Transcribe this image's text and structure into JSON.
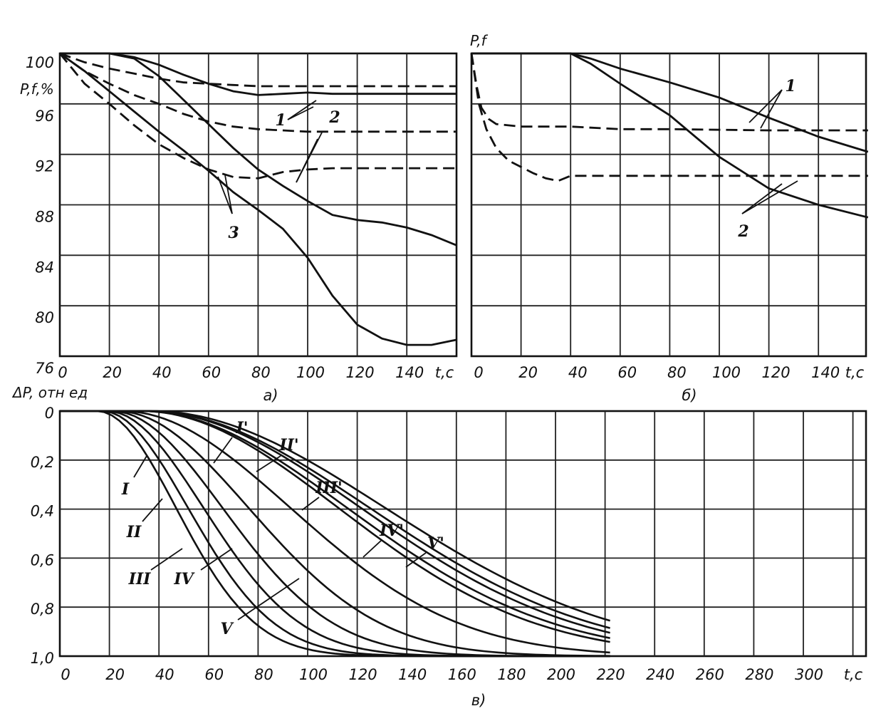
{
  "chart_data": [
    {
      "id": "a",
      "type": "line",
      "caption": "a)",
      "ylabel": "P,f,%",
      "xlabel": "t,c",
      "xlim": [
        0,
        160
      ],
      "ylim": [
        76,
        100
      ],
      "x_ticks": [
        "0",
        "20",
        "40",
        "60",
        "80",
        "100",
        "120",
        "140"
      ],
      "y_ticks": [
        "100",
        "96",
        "92",
        "88",
        "84",
        "80",
        "76"
      ],
      "grid": true,
      "series": [
        {
          "style": "dashed",
          "points": [
            [
              0,
              100
            ],
            [
              10,
              99.3
            ],
            [
              20,
              98.8
            ],
            [
              30,
              98.4
            ],
            [
              40,
              98.0
            ],
            [
              50,
              97.7
            ],
            [
              60,
              97.6
            ],
            [
              70,
              97.5
            ],
            [
              80,
              97.4
            ],
            [
              100,
              97.4
            ],
            [
              130,
              97.4
            ],
            [
              160,
              97.4
            ]
          ]
        },
        {
          "style": "solid",
          "points": [
            [
              0,
              100
            ],
            [
              20,
              100
            ],
            [
              30,
              99.7
            ],
            [
              40,
              99.1
            ],
            [
              50,
              98.3
            ],
            [
              60,
              97.6
            ],
            [
              70,
              97.0
            ],
            [
              80,
              96.7
            ],
            [
              90,
              96.8
            ],
            [
              100,
              96.9
            ],
            [
              110,
              96.8
            ],
            [
              130,
              96.8
            ],
            [
              160,
              96.8
            ]
          ]
        },
        {
          "style": "dashed",
          "points": [
            [
              0,
              100
            ],
            [
              10,
              98.6
            ],
            [
              20,
              97.6
            ],
            [
              30,
              96.7
            ],
            [
              40,
              96.0
            ],
            [
              50,
              95.2
            ],
            [
              60,
              94.6
            ],
            [
              70,
              94.2
            ],
            [
              80,
              94.0
            ],
            [
              100,
              93.8
            ],
            [
              130,
              93.8
            ],
            [
              160,
              93.8
            ]
          ]
        },
        {
          "style": "solid",
          "points": [
            [
              0,
              100
            ],
            [
              20,
              100
            ],
            [
              30,
              99.6
            ],
            [
              40,
              98.2
            ],
            [
              50,
              96.3
            ],
            [
              60,
              94.4
            ],
            [
              70,
              92.5
            ],
            [
              80,
              90.8
            ],
            [
              90,
              89.5
            ],
            [
              100,
              88.3
            ],
            [
              110,
              87.2
            ],
            [
              120,
              86.8
            ],
            [
              130,
              86.6
            ],
            [
              140,
              86.2
            ],
            [
              150,
              85.6
            ],
            [
              160,
              84.8
            ]
          ]
        },
        {
          "style": "dashed",
          "points": [
            [
              0,
              100
            ],
            [
              5,
              98.8
            ],
            [
              10,
              97.6
            ],
            [
              20,
              96.0
            ],
            [
              30,
              94.3
            ],
            [
              40,
              92.8
            ],
            [
              50,
              91.7
            ],
            [
              60,
              90.8
            ],
            [
              70,
              90.2
            ],
            [
              80,
              90.1
            ],
            [
              90,
              90.6
            ],
            [
              100,
              90.8
            ],
            [
              110,
              90.9
            ],
            [
              130,
              90.9
            ],
            [
              160,
              90.9
            ]
          ]
        },
        {
          "style": "solid",
          "points": [
            [
              0,
              100
            ],
            [
              10,
              98.6
            ],
            [
              20,
              97.0
            ],
            [
              30,
              95.4
            ],
            [
              40,
              93.8
            ],
            [
              50,
              92.3
            ],
            [
              60,
              90.7
            ],
            [
              70,
              89.0
            ],
            [
              80,
              87.6
            ],
            [
              90,
              86.1
            ],
            [
              100,
              83.8
            ],
            [
              110,
              80.8
            ],
            [
              120,
              78.5
            ],
            [
              130,
              77.4
            ],
            [
              140,
              76.9
            ],
            [
              150,
              76.9
            ],
            [
              160,
              77.3
            ]
          ]
        }
      ],
      "annotations": [
        "1",
        "2",
        "3"
      ]
    },
    {
      "id": "b",
      "type": "line",
      "caption": "б)",
      "ylabel": "P,f",
      "xlabel": "t,c",
      "xlim": [
        0,
        160
      ],
      "ylim": [
        76,
        100
      ],
      "x_ticks": [
        "0",
        "20",
        "40",
        "60",
        "80",
        "100",
        "120",
        "140"
      ],
      "grid": true,
      "series": [
        {
          "style": "dashed",
          "points": [
            [
              0,
              100
            ],
            [
              2,
              97.5
            ],
            [
              4,
              95.7
            ],
            [
              7,
              94.8
            ],
            [
              10,
              94.4
            ],
            [
              20,
              94.2
            ],
            [
              40,
              94.2
            ],
            [
              60,
              94.0
            ],
            [
              80,
              94.0
            ],
            [
              120,
              93.9
            ],
            [
              160,
              93.9
            ]
          ]
        },
        {
          "style": "dashed",
          "points": [
            [
              0,
              100
            ],
            [
              3,
              96
            ],
            [
              6,
              94
            ],
            [
              10,
              92.5
            ],
            [
              15,
              91.5
            ],
            [
              20,
              91.0
            ],
            [
              25,
              90.5
            ],
            [
              30,
              90.1
            ],
            [
              35,
              89.9
            ],
            [
              40,
              90.3
            ],
            [
              60,
              90.3
            ],
            [
              100,
              90.3
            ],
            [
              160,
              90.3
            ]
          ]
        },
        {
          "style": "solid",
          "points": [
            [
              0,
              100
            ],
            [
              20,
              100
            ],
            [
              40,
              100
            ],
            [
              48,
              99.6
            ],
            [
              60,
              98.8
            ],
            [
              80,
              97.7
            ],
            [
              100,
              96.5
            ],
            [
              120,
              94.9
            ],
            [
              140,
              93.4
            ],
            [
              160,
              92.2
            ]
          ]
        },
        {
          "style": "solid",
          "points": [
            [
              0,
              100
            ],
            [
              20,
              100
            ],
            [
              40,
              100
            ],
            [
              48,
              99.2
            ],
            [
              60,
              97.6
            ],
            [
              80,
              95.1
            ],
            [
              100,
              91.8
            ],
            [
              120,
              89.3
            ],
            [
              140,
              88.0
            ],
            [
              160,
              87.0
            ]
          ]
        }
      ],
      "annotations": [
        "1",
        "2"
      ]
    },
    {
      "id": "c",
      "type": "line",
      "caption": "в)",
      "ylabel": "ΔP, отн ед",
      "xlabel": "t,c",
      "xlim": [
        0,
        320
      ],
      "ylim": [
        1.0,
        0
      ],
      "x_ticks": [
        "0",
        "20",
        "40",
        "60",
        "80",
        "100",
        "120",
        "140",
        "160",
        "180",
        "200",
        "220",
        "240",
        "260",
        "280",
        "300"
      ],
      "y_ticks": [
        "0",
        "0,2",
        "0,4",
        "0,6",
        "0,8",
        "1,0"
      ],
      "grid": true,
      "series": [
        {
          "name": "I",
          "delay": 15,
          "scale": 45
        },
        {
          "name": "II",
          "delay": 17,
          "scale": 49
        },
        {
          "name": "III",
          "delay": 19,
          "scale": 55
        },
        {
          "name": "IV",
          "delay": 21,
          "scale": 63
        },
        {
          "name": "V",
          "delay": 23,
          "scale": 75
        },
        {
          "name": "",
          "delay": 25,
          "scale": 96
        },
        {
          "name": "I'",
          "delay": 33,
          "scale": 112
        },
        {
          "name": "II'",
          "delay": 33,
          "scale": 117
        },
        {
          "name": "III'",
          "delay": 35,
          "scale": 122
        },
        {
          "name": "IV'",
          "delay": 35,
          "scale": 127
        },
        {
          "name": "V'",
          "delay": 37,
          "scale": 133
        }
      ],
      "series_labels": [
        "I",
        "II",
        "III",
        "IV",
        "V",
        "I'",
        "II'",
        "III'",
        "IV'",
        "V'"
      ]
    }
  ]
}
